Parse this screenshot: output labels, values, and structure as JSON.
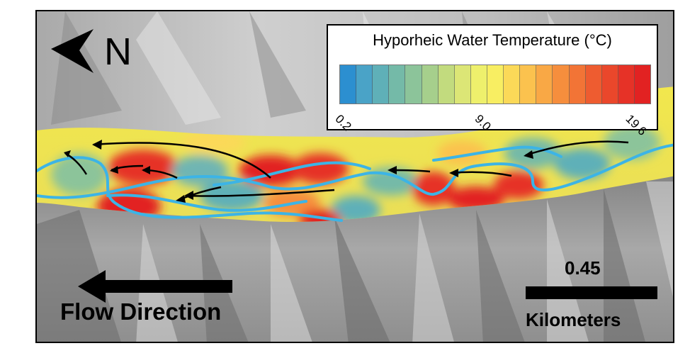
{
  "map": {
    "north_label": "N",
    "flow_direction_label": "Flow Direction",
    "scale_bar": {
      "value": "0.45",
      "unit": "Kilometers"
    }
  },
  "legend": {
    "title": "Hyporheic Water Temperature (°C)",
    "ticks": [
      "0.2",
      "9.0",
      "19.6"
    ],
    "min_value": 0.2,
    "mid_value": 9.0,
    "max_value": 19.6,
    "ramp_colors": [
      "#2c8fd0",
      "#4aa3c7",
      "#5fb0b8",
      "#74baa8",
      "#8cc49a",
      "#a6cf8c",
      "#c2db7e",
      "#dce676",
      "#eef06c",
      "#f8ee62",
      "#fbd958",
      "#fbc24e",
      "#f9a845",
      "#f68e3d",
      "#f27436",
      "#ee5c30",
      "#ea472b",
      "#e63227",
      "#e22222"
    ]
  },
  "colors": {
    "cold": "#2c8fd0",
    "warm": "#e22222",
    "channel": "#3cb4e6",
    "arrow": "#000000"
  },
  "icons": {
    "north": "north-arrow-icon",
    "flow": "flow-direction-arrow-icon"
  }
}
